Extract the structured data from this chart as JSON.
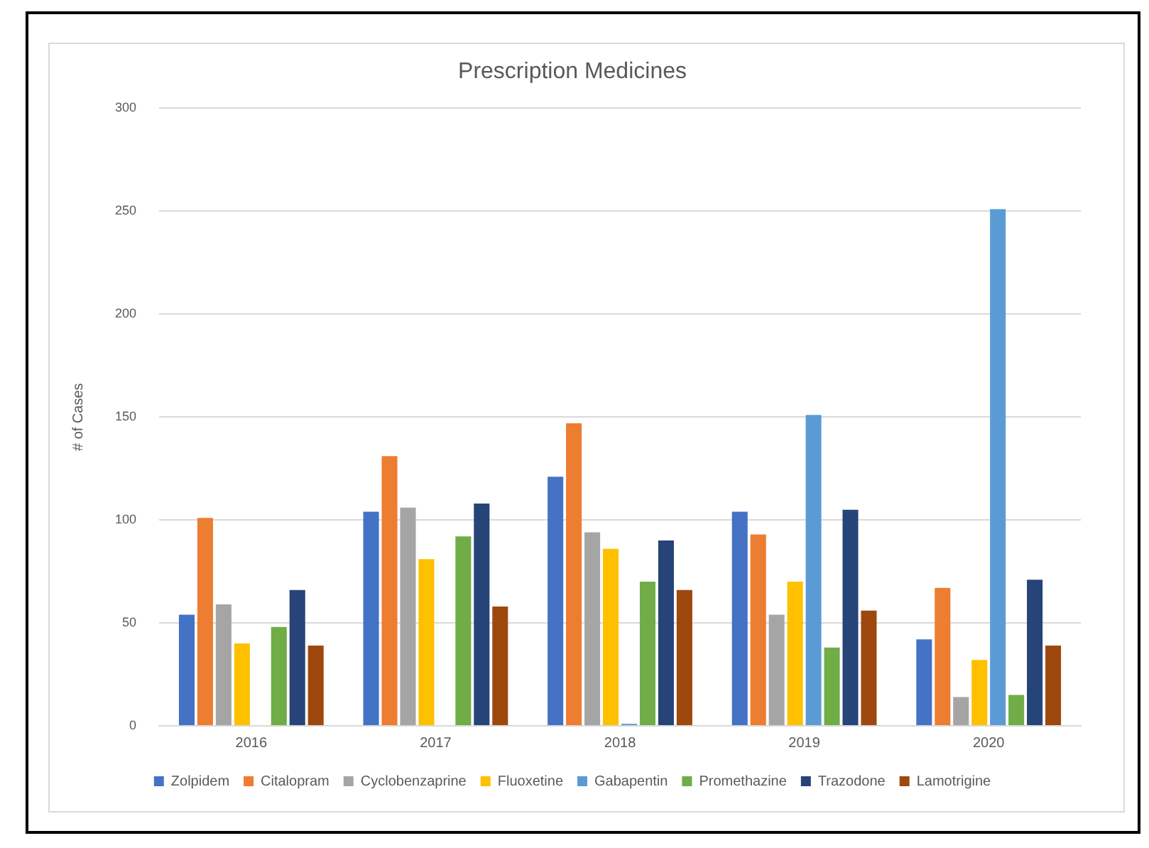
{
  "chart_data": {
    "type": "bar",
    "title": "Prescription Medicines",
    "ylabel": "# of Cases",
    "categories": [
      "2016",
      "2017",
      "2018",
      "2019",
      "2020"
    ],
    "series": [
      {
        "name": "Zolpidem",
        "color": "#4472c4",
        "values": [
          54,
          104,
          121,
          104,
          42
        ]
      },
      {
        "name": "Citalopram",
        "color": "#ed7d31",
        "values": [
          101,
          131,
          147,
          93,
          67
        ]
      },
      {
        "name": "Cyclobenzaprine",
        "color": "#a5a5a5",
        "values": [
          59,
          106,
          94,
          54,
          14
        ]
      },
      {
        "name": "Fluoxetine",
        "color": "#ffc000",
        "values": [
          40,
          81,
          86,
          70,
          32
        ]
      },
      {
        "name": "Gabapentin",
        "color": "#5b9bd5",
        "values": [
          0,
          0,
          1,
          151,
          251
        ]
      },
      {
        "name": "Promethazine",
        "color": "#70ad47",
        "values": [
          48,
          92,
          70,
          38,
          15
        ]
      },
      {
        "name": "Trazodone",
        "color": "#264478",
        "values": [
          66,
          108,
          90,
          105,
          71
        ]
      },
      {
        "name": "Lamotrigine",
        "color": "#9e480e",
        "values": [
          39,
          58,
          66,
          56,
          39
        ]
      }
    ],
    "ylim": [
      0,
      300
    ],
    "yticks": [
      0,
      50,
      100,
      150,
      200,
      250,
      300
    ],
    "grid": "y",
    "legend": "bottom"
  }
}
